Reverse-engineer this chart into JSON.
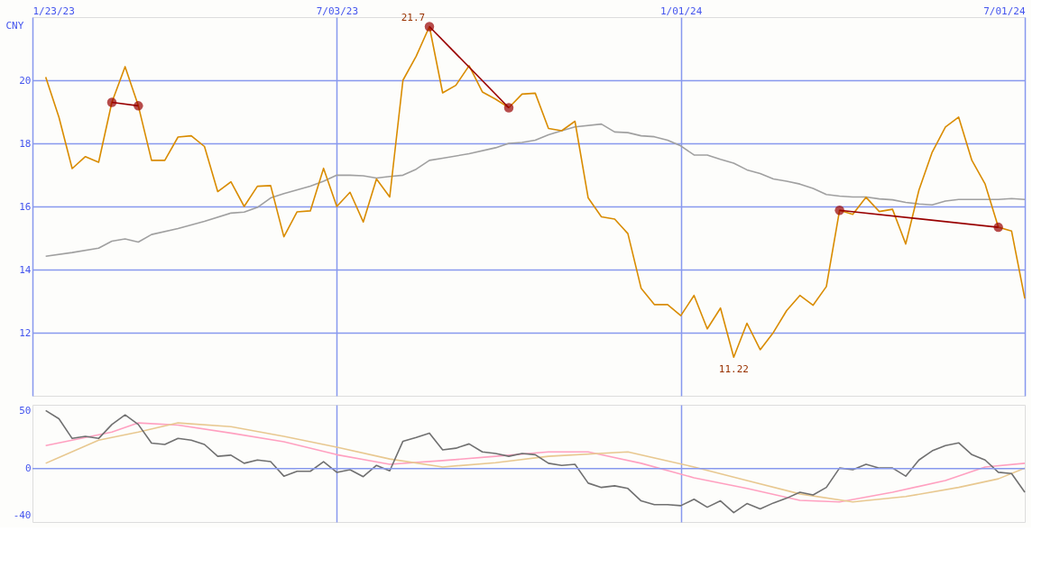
{
  "chart_data": [
    {
      "type": "line",
      "ylabel": "CNY",
      "xlim": [
        "2023-01-23",
        "2024-07-01"
      ],
      "ylim": [
        10,
        22
      ],
      "yticks": [
        12,
        14,
        16,
        18,
        20
      ],
      "grid": true,
      "xticks": [
        {
          "value": "2023-01-23",
          "label": "1/23/23"
        },
        {
          "value": "2023-07-03",
          "label": "7/03/23"
        },
        {
          "value": "2024-01-01",
          "label": "1/01/24"
        },
        {
          "value": "2024-07-01",
          "label": "7/01/24"
        }
      ],
      "x": [
        "2023-01-30",
        "2023-02-06",
        "2023-02-13",
        "2023-02-20",
        "2023-02-27",
        "2023-03-06",
        "2023-03-13",
        "2023-03-20",
        "2023-03-27",
        "2023-04-03",
        "2023-04-10",
        "2023-04-17",
        "2023-04-24",
        "2023-05-01",
        "2023-05-08",
        "2023-05-15",
        "2023-05-22",
        "2023-05-29",
        "2023-06-05",
        "2023-06-12",
        "2023-06-19",
        "2023-06-26",
        "2023-07-03",
        "2023-07-10",
        "2023-07-17",
        "2023-07-24",
        "2023-07-31",
        "2023-08-07",
        "2023-08-14",
        "2023-08-21",
        "2023-08-28",
        "2023-09-04",
        "2023-09-11",
        "2023-09-18",
        "2023-09-25",
        "2023-10-02",
        "2023-10-09",
        "2023-10-16",
        "2023-10-23",
        "2023-10-30",
        "2023-11-06",
        "2023-11-13",
        "2023-11-20",
        "2023-11-27",
        "2023-12-04",
        "2023-12-11",
        "2023-12-18",
        "2023-12-25",
        "2024-01-01",
        "2024-01-08",
        "2024-01-15",
        "2024-01-22",
        "2024-01-29",
        "2024-02-05",
        "2024-02-12",
        "2024-02-19",
        "2024-02-26",
        "2024-03-04",
        "2024-03-11",
        "2024-03-18",
        "2024-03-25",
        "2024-04-01",
        "2024-04-08",
        "2024-04-15",
        "2024-04-22",
        "2024-04-29",
        "2024-05-06",
        "2024-05-13",
        "2024-05-20",
        "2024-05-27",
        "2024-06-03",
        "2024-06-10",
        "2024-06-17",
        "2024-06-24",
        "2024-07-01"
      ],
      "series": [
        {
          "color": "#a0a0a0",
          "x": [
            "2023-01-30",
            "2023-02-13",
            "2023-02-27",
            "2023-03-06",
            "2023-03-13",
            "2023-03-20",
            "2023-03-27",
            "2023-04-10",
            "2023-04-24",
            "2023-05-08",
            "2023-05-15",
            "2023-05-22",
            "2023-05-29",
            "2023-06-05",
            "2023-06-19",
            "2023-06-26",
            "2023-07-03",
            "2023-07-10",
            "2023-07-17",
            "2023-07-24",
            "2023-07-31",
            "2023-08-07",
            "2023-08-14",
            "2023-08-21",
            "2023-08-28",
            "2023-09-11",
            "2023-09-25",
            "2023-10-02",
            "2023-10-09",
            "2023-10-16",
            "2023-10-23",
            "2023-10-30",
            "2023-11-06",
            "2023-11-20",
            "2023-11-27",
            "2023-12-04",
            "2023-12-11",
            "2023-12-18",
            "2023-12-25",
            "2024-01-01",
            "2024-01-08",
            "2024-01-15",
            "2024-01-22",
            "2024-01-29",
            "2024-02-05",
            "2024-02-12",
            "2024-02-19",
            "2024-02-26",
            "2024-03-04",
            "2024-03-11",
            "2024-03-18",
            "2024-03-25",
            "2024-04-01",
            "2024-04-08",
            "2024-04-15",
            "2024-04-22",
            "2024-04-29",
            "2024-05-06",
            "2024-05-13",
            "2024-05-20",
            "2024-05-27",
            "2024-06-03",
            "2024-06-10",
            "2024-06-17",
            "2024-06-24",
            "2024-07-01"
          ],
          "values": [
            14.42,
            14.54,
            14.68,
            14.9,
            14.97,
            14.87,
            15.11,
            15.3,
            15.53,
            15.79,
            15.82,
            15.97,
            16.27,
            16.41,
            16.64,
            16.8,
            16.99,
            16.99,
            16.97,
            16.9,
            16.95,
            16.99,
            17.18,
            17.46,
            17.53,
            17.67,
            17.86,
            18.0,
            18.03,
            18.1,
            18.27,
            18.4,
            18.52,
            18.61,
            18.36,
            18.34,
            18.24,
            18.21,
            18.1,
            17.92,
            17.63,
            17.63,
            17.49,
            17.37,
            17.16,
            17.04,
            16.87,
            16.8,
            16.71,
            16.57,
            16.38,
            16.33,
            16.3,
            16.3,
            16.24,
            16.21,
            16.13,
            16.08,
            16.05,
            16.17,
            16.22,
            16.22,
            16.22,
            16.22,
            16.25,
            16.22
          ]
        },
        {
          "color": "#d98c00",
          "values": [
            20.1,
            18.83,
            17.2,
            17.58,
            17.4,
            19.3,
            20.43,
            19.19,
            17.46,
            17.46,
            18.2,
            18.24,
            17.9,
            16.47,
            16.78,
            16.0,
            16.64,
            16.66,
            15.04,
            15.83,
            15.86,
            17.21,
            16.0,
            16.45,
            15.51,
            16.87,
            16.3,
            20.0,
            20.76,
            21.7,
            19.6,
            19.84,
            20.46,
            19.63,
            19.4,
            19.13,
            19.56,
            19.59,
            18.47,
            18.4,
            18.7,
            16.27,
            15.67,
            15.6,
            15.14,
            13.41,
            12.89,
            12.89,
            12.54,
            13.18,
            12.12,
            12.78,
            11.22,
            12.3,
            11.46,
            12.01,
            12.7,
            13.18,
            12.87,
            13.46,
            15.88,
            15.75,
            16.29,
            15.84,
            15.91,
            14.81,
            16.52,
            17.72,
            18.52,
            18.83,
            17.46,
            16.71,
            15.34,
            15.22,
            13.08
          ]
        },
        {
          "color": "#990000",
          "marker": "circle",
          "x": [
            "2023-03-06",
            "2023-03-20"
          ],
          "values": [
            19.3,
            19.19
          ]
        },
        {
          "color": "#990000",
          "marker": "circle",
          "x": [
            "2023-08-21",
            "2023-10-02"
          ],
          "values": [
            21.7,
            19.13
          ]
        },
        {
          "color": "#990000",
          "marker": "circle",
          "x": [
            "2024-03-25",
            "2024-06-17"
          ],
          "values": [
            15.88,
            15.34
          ]
        }
      ],
      "annotations": [
        {
          "text": "21.7",
          "x": "2023-08-21",
          "y": 21.7
        },
        {
          "text": "11.22",
          "x": "2024-01-29",
          "y": 11.22
        }
      ]
    },
    {
      "type": "line",
      "xlim": [
        "2023-01-23",
        "2024-07-01"
      ],
      "ylim": [
        -46,
        55
      ],
      "yticks": [
        -40,
        0,
        50
      ],
      "grid": "x",
      "tick_labels": "y",
      "xticks": [
        {
          "value": "2023-07-03",
          "label": null
        },
        {
          "value": "2024-01-01",
          "label": null
        }
      ],
      "ref_lines": [
        {
          "axis": "y",
          "value": 0,
          "color": "#8899ee"
        }
      ],
      "x": [
        "2023-01-30",
        "2023-02-06",
        "2023-02-13",
        "2023-02-20",
        "2023-02-27",
        "2023-03-06",
        "2023-03-13",
        "2023-03-20",
        "2023-03-27",
        "2023-04-03",
        "2023-04-10",
        "2023-04-17",
        "2023-04-24",
        "2023-05-01",
        "2023-05-08",
        "2023-05-15",
        "2023-05-22",
        "2023-05-29",
        "2023-06-05",
        "2023-06-12",
        "2023-06-19",
        "2023-06-26",
        "2023-07-03",
        "2023-07-10",
        "2023-07-17",
        "2023-07-24",
        "2023-07-31",
        "2023-08-07",
        "2023-08-14",
        "2023-08-21",
        "2023-08-28",
        "2023-09-04",
        "2023-09-11",
        "2023-09-18",
        "2023-09-25",
        "2023-10-02",
        "2023-10-09",
        "2023-10-16",
        "2023-10-23",
        "2023-10-30",
        "2023-11-06",
        "2023-11-13",
        "2023-11-20",
        "2023-11-27",
        "2023-12-04",
        "2023-12-11",
        "2023-12-18",
        "2023-12-25",
        "2024-01-01",
        "2024-01-08",
        "2024-01-15",
        "2024-01-22",
        "2024-01-29",
        "2024-02-05",
        "2024-02-12",
        "2024-02-19",
        "2024-02-26",
        "2024-03-04",
        "2024-03-11",
        "2024-03-18",
        "2024-03-25",
        "2024-04-01",
        "2024-04-08",
        "2024-04-15",
        "2024-04-22",
        "2024-04-29",
        "2024-05-06",
        "2024-05-13",
        "2024-05-20",
        "2024-05-27",
        "2024-06-03",
        "2024-06-10",
        "2024-06-17",
        "2024-06-24",
        "2024-07-01"
      ],
      "series": [
        {
          "color": "#ffa0c0",
          "x": [
            "2023-01-30",
            "2023-03-06",
            "2023-03-20",
            "2023-04-10",
            "2023-05-08",
            "2023-06-05",
            "2023-07-03",
            "2023-07-31",
            "2023-08-28",
            "2023-09-25",
            "2023-10-23",
            "2023-11-13",
            "2023-12-11",
            "2024-01-08",
            "2024-02-05",
            "2024-03-04",
            "2024-03-25",
            "2024-04-22",
            "2024-05-20",
            "2024-06-10",
            "2024-07-01"
          ],
          "values": [
            19.9,
            31.5,
            39.4,
            37.5,
            30.6,
            23.1,
            12,
            3.7,
            6.9,
            10.6,
            14.4,
            14.4,
            4.6,
            -7.9,
            -17.1,
            -27.3,
            -28.7,
            -20.4,
            -10.2,
            1.4,
            4.6
          ]
        },
        {
          "color": "#e8c890",
          "x": [
            "2023-01-30",
            "2023-02-27",
            "2023-03-20",
            "2023-04-10",
            "2023-05-08",
            "2023-06-05",
            "2023-07-03",
            "2023-07-31",
            "2023-08-28",
            "2023-09-25",
            "2023-10-23",
            "2023-12-04",
            "2024-01-08",
            "2024-02-05",
            "2024-03-04",
            "2024-04-01",
            "2024-04-29",
            "2024-05-27",
            "2024-06-17",
            "2024-07-01"
          ],
          "values": [
            4.6,
            24.5,
            31.5,
            39.4,
            36.1,
            27.8,
            18.5,
            8.3,
            1.4,
            5.1,
            10.6,
            14.4,
            1.4,
            -10.2,
            -21.8,
            -28.7,
            -24.1,
            -16.2,
            -8.8,
            0.5
          ]
        },
        {
          "color": "#707070",
          "values": [
            50,
            43,
            26,
            27.8,
            26,
            38,
            46.3,
            38,
            22,
            20.8,
            26,
            24.5,
            20.8,
            10.6,
            11.6,
            4.6,
            7.4,
            6,
            -6.5,
            -2.3,
            -2.3,
            6,
            -3.2,
            -0.9,
            -6.9,
            2.8,
            -1.9,
            23.6,
            26.9,
            30.6,
            16.2,
            17.6,
            21.3,
            14.4,
            13,
            10.6,
            13,
            12,
            4.6,
            2.8,
            3.7,
            -12.5,
            -16.2,
            -14.8,
            -17.1,
            -27.8,
            -31,
            -31,
            -31.9,
            -26.4,
            -33.3,
            -27.8,
            -38,
            -30.1,
            -34.7,
            -29.6,
            -25.5,
            -20.4,
            -22.7,
            -16.2,
            0.5,
            -0.9,
            3.7,
            0.5,
            0.5,
            -6.5,
            7.4,
            15.3,
            19.9,
            22.2,
            12,
            7.4,
            -3.2,
            -4.2,
            -20.4
          ]
        }
      ]
    }
  ]
}
